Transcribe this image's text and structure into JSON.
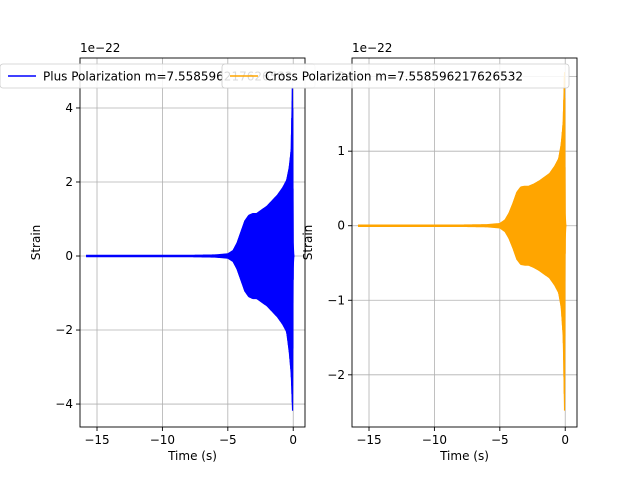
{
  "chart_data": [
    {
      "type": "line",
      "title": "",
      "xlabel": "Time (s)",
      "ylabel": "Strain",
      "y_offset_label": "1e−22",
      "xlim": [
        -16.3,
        0.9
      ],
      "ylim": [
        -4.62,
        5.35
      ],
      "x_ticks": [
        -15,
        -10,
        -5,
        0
      ],
      "x_tick_labels": [
        "−15",
        "−10",
        "−5",
        "0"
      ],
      "y_ticks": [
        -4,
        -2,
        0,
        2,
        4
      ],
      "y_tick_labels": [
        "−4",
        "−2",
        "0",
        "2",
        "4"
      ],
      "grid": true,
      "legend": "upper-right",
      "series": [
        {
          "name": "Plus Polarization m=7.558596217626532",
          "color": "#0000ff",
          "x": [
            -15.8,
            -12,
            -8,
            -6,
            -5,
            -4.6,
            -4.3,
            -4.0,
            -3.7,
            -3.4,
            -3.1,
            -2.8,
            -2.4,
            -2.0,
            -1.6,
            -1.2,
            -0.8,
            -0.5,
            -0.3,
            -0.15,
            -0.05,
            0.0,
            0.05
          ],
          "envelope": [
            0.02,
            0.02,
            0.02,
            0.03,
            0.06,
            0.15,
            0.35,
            0.65,
            0.95,
            1.1,
            1.15,
            1.15,
            1.25,
            1.35,
            1.5,
            1.65,
            1.85,
            2.05,
            2.4,
            2.9,
            4.9,
            0.1,
            0.0
          ],
          "neg_envelope": [
            0.02,
            0.02,
            0.02,
            0.03,
            0.06,
            0.15,
            0.35,
            0.65,
            0.95,
            1.1,
            1.15,
            1.15,
            1.25,
            1.35,
            1.5,
            1.65,
            1.85,
            2.05,
            2.6,
            3.2,
            4.2,
            0.1,
            0.0
          ]
        }
      ]
    },
    {
      "type": "line",
      "title": "",
      "xlabel": "Time (s)",
      "ylabel": "Strain",
      "y_offset_label": "1e−22",
      "xlim": [
        -16.3,
        0.9
      ],
      "ylim": [
        -2.7,
        2.25
      ],
      "x_ticks": [
        -15,
        -10,
        -5,
        0
      ],
      "x_tick_labels": [
        "−15",
        "−10",
        "−5",
        "0"
      ],
      "y_ticks": [
        -2,
        -1,
        0,
        1,
        2
      ],
      "y_tick_labels": [
        "−2",
        "−1",
        "0",
        "1",
        "2"
      ],
      "grid": true,
      "legend": "upper-right",
      "series": [
        {
          "name": "Cross Polarization m=7.558596217626532",
          "color": "#ffa500",
          "x": [
            -15.8,
            -12,
            -8,
            -6,
            -5,
            -4.6,
            -4.3,
            -4.0,
            -3.7,
            -3.4,
            -3.1,
            -2.8,
            -2.4,
            -2.0,
            -1.6,
            -1.2,
            -0.8,
            -0.5,
            -0.3,
            -0.15,
            -0.05,
            0.0,
            0.05
          ],
          "envelope": [
            0.01,
            0.01,
            0.01,
            0.015,
            0.03,
            0.08,
            0.17,
            0.3,
            0.45,
            0.52,
            0.53,
            0.53,
            0.56,
            0.6,
            0.65,
            0.7,
            0.8,
            0.9,
            1.1,
            1.4,
            2.1,
            0.05,
            0.0
          ],
          "neg_envelope": [
            0.01,
            0.01,
            0.01,
            0.015,
            0.03,
            0.08,
            0.17,
            0.3,
            0.45,
            0.52,
            0.53,
            0.53,
            0.56,
            0.6,
            0.65,
            0.7,
            0.8,
            0.9,
            1.1,
            1.5,
            2.5,
            0.05,
            0.0
          ]
        }
      ]
    }
  ]
}
